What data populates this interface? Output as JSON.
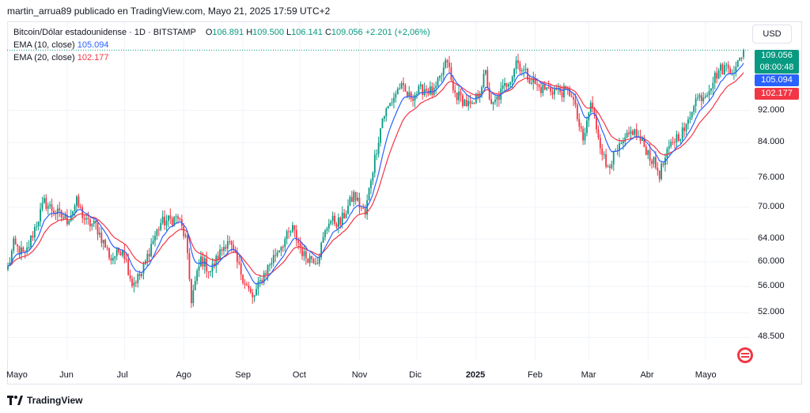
{
  "header": {
    "published_by": "martin_arrua89 publicado en TradingView.com, Mayo 21, 2025 17:59 UTC+2"
  },
  "legend": {
    "symbol": "Bitcoin/Dólar estadounidense · 1D · BITSTAMP",
    "open_label": "O",
    "open": "106.891",
    "high_label": "H",
    "high": "109.500",
    "low_label": "L",
    "low": "106.141",
    "close_label": "C",
    "close": "109.056",
    "change": "+2.201 (+2,06%)",
    "ema10_label": "EMA (10, close)",
    "ema10_value": "105.094",
    "ema20_label": "EMA (20, close)",
    "ema20_value": "102.177"
  },
  "currency_button": "USD",
  "price_tags": {
    "last_price": "109.056",
    "countdown": "08:00:48",
    "ema10": "105.094",
    "ema20": "102.177"
  },
  "footer": {
    "brand": "TradingView"
  },
  "colors": {
    "up": "#089981",
    "down": "#f23645",
    "ema10": "#2962ff",
    "ema20": "#f23645"
  },
  "icons": [
    "tradingview-logo-icon",
    "calendar-emblem-icon"
  ],
  "chart_data": {
    "type": "candlestick",
    "interval": "1D",
    "y_scale": "log",
    "y_ticks": [
      {
        "value": 48500,
        "label": "48.500"
      },
      {
        "value": 52000,
        "label": "52.000"
      },
      {
        "value": 56000,
        "label": "56.000"
      },
      {
        "value": 60000,
        "label": "60.000"
      },
      {
        "value": 64000,
        "label": "64.000"
      },
      {
        "value": 70000,
        "label": "70.000"
      },
      {
        "value": 76000,
        "label": "76.000"
      },
      {
        "value": 84000,
        "label": "84.000"
      },
      {
        "value": 92000,
        "label": "92.000"
      }
    ],
    "x_ticks": [
      {
        "date": "2024-05-01",
        "label": "Mayo"
      },
      {
        "date": "2024-06-01",
        "label": "Jun"
      },
      {
        "date": "2024-07-01",
        "label": "Jul"
      },
      {
        "date": "2024-08-01",
        "label": "Ago"
      },
      {
        "date": "2024-09-01",
        "label": "Sep"
      },
      {
        "date": "2024-10-01",
        "label": "Oct"
      },
      {
        "date": "2024-11-01",
        "label": "Nov"
      },
      {
        "date": "2024-12-01",
        "label": "Dic"
      },
      {
        "date": "2025-01-01",
        "label": "2025"
      },
      {
        "date": "2025-02-01",
        "label": "Feb"
      },
      {
        "date": "2025-03-01",
        "label": "Mar"
      },
      {
        "date": "2025-04-01",
        "label": "Abr"
      },
      {
        "date": "2025-05-01",
        "label": "Mayo"
      }
    ],
    "x_range": [
      "2024-05-01",
      "2025-05-21"
    ],
    "y_range": [
      45500,
      118000
    ],
    "close_anchors": [
      [
        "2024-05-01",
        59000
      ],
      [
        "2024-05-04",
        63000
      ],
      [
        "2024-05-10",
        61000
      ],
      [
        "2024-05-15",
        66000
      ],
      [
        "2024-05-20",
        71000
      ],
      [
        "2024-05-26",
        69000
      ],
      [
        "2024-06-01",
        67500
      ],
      [
        "2024-06-06",
        71000
      ],
      [
        "2024-06-11",
        67000
      ],
      [
        "2024-06-16",
        66500
      ],
      [
        "2024-06-24",
        60500
      ],
      [
        "2024-06-30",
        62500
      ],
      [
        "2024-07-05",
        56500
      ],
      [
        "2024-07-10",
        58000
      ],
      [
        "2024-07-15",
        63000
      ],
      [
        "2024-07-20",
        67000
      ],
      [
        "2024-07-29",
        68000
      ],
      [
        "2024-08-02",
        64000
      ],
      [
        "2024-08-05",
        54000
      ],
      [
        "2024-08-10",
        60500
      ],
      [
        "2024-08-15",
        58500
      ],
      [
        "2024-08-24",
        64000
      ],
      [
        "2024-08-30",
        59000
      ],
      [
        "2024-09-06",
        54000
      ],
      [
        "2024-09-12",
        58000
      ],
      [
        "2024-09-20",
        62500
      ],
      [
        "2024-09-27",
        65800
      ],
      [
        "2024-10-03",
        61000
      ],
      [
        "2024-10-10",
        60500
      ],
      [
        "2024-10-16",
        67500
      ],
      [
        "2024-10-22",
        67000
      ],
      [
        "2024-10-29",
        72500
      ],
      [
        "2024-11-04",
        68500
      ],
      [
        "2024-11-07",
        76000
      ],
      [
        "2024-11-13",
        90000
      ],
      [
        "2024-11-22",
        98500
      ],
      [
        "2024-11-27",
        95500
      ],
      [
        "2024-12-05",
        98000
      ],
      [
        "2024-12-10",
        96500
      ],
      [
        "2024-12-17",
        106000
      ],
      [
        "2024-12-20",
        97000
      ],
      [
        "2024-12-30",
        92500
      ],
      [
        "2025-01-06",
        102000
      ],
      [
        "2025-01-09",
        92500
      ],
      [
        "2025-01-20",
        102000
      ],
      [
        "2025-01-22",
        106000
      ],
      [
        "2025-01-27",
        102000
      ],
      [
        "2025-02-03",
        98000
      ],
      [
        "2025-02-10",
        97500
      ],
      [
        "2025-02-20",
        96500
      ],
      [
        "2025-02-26",
        84000
      ],
      [
        "2025-03-02",
        94000
      ],
      [
        "2025-03-10",
        78500
      ],
      [
        "2025-03-18",
        83000
      ],
      [
        "2025-03-24",
        87000
      ],
      [
        "2025-03-31",
        82500
      ],
      [
        "2025-04-07",
        77000
      ],
      [
        "2025-04-14",
        84500
      ],
      [
        "2025-04-21",
        87500
      ],
      [
        "2025-04-25",
        94500
      ],
      [
        "2025-05-01",
        96500
      ],
      [
        "2025-05-08",
        103000
      ],
      [
        "2025-05-12",
        104000
      ],
      [
        "2025-05-17",
        103300
      ],
      [
        "2025-05-21",
        109056
      ]
    ],
    "last_candle": {
      "open": 106891,
      "high": 109500,
      "low": 106141,
      "close": 109056
    },
    "series": [
      {
        "name": "EMA (10, close)",
        "last": 105094
      },
      {
        "name": "EMA (20, close)",
        "last": 102177
      }
    ]
  }
}
